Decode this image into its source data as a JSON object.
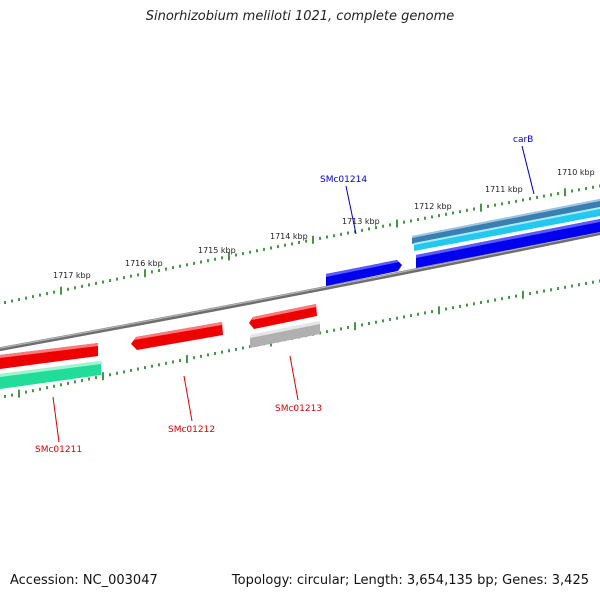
{
  "title": "Sinorhizobium meliloti 1021, complete genome",
  "footer": {
    "accession": "Accession: NC_003047",
    "summary": "Topology: circular; Length: 3,654,135 bp; Genes: 3,425"
  },
  "ticks": [
    "1710 kbp",
    "1711 kbp",
    "1712 kbp",
    "1713 kbp",
    "1714 kbp",
    "1715 kbp",
    "1716 kbp",
    "1717 kbp"
  ],
  "genes": [
    {
      "name": "carB",
      "color": "#0000cc"
    },
    {
      "name": "SMc01214",
      "color": "#0000cc"
    },
    {
      "name": "SMc01213",
      "color": "#dd0000"
    },
    {
      "name": "SMc01212",
      "color": "#dd0000"
    },
    {
      "name": "SMc01211",
      "color": "#dd0000"
    }
  ],
  "colors": {
    "backbone": "#7a7a7a",
    "tick": "#1a7a1a",
    "forward_cds": "#0000ee",
    "reverse_cds": "#ee0000",
    "forward_gene": "#3a7fb0",
    "forward_rna": "#22c8ee",
    "reverse_gene": "#b0b0b0",
    "reverse_rna": "#22dd99"
  }
}
